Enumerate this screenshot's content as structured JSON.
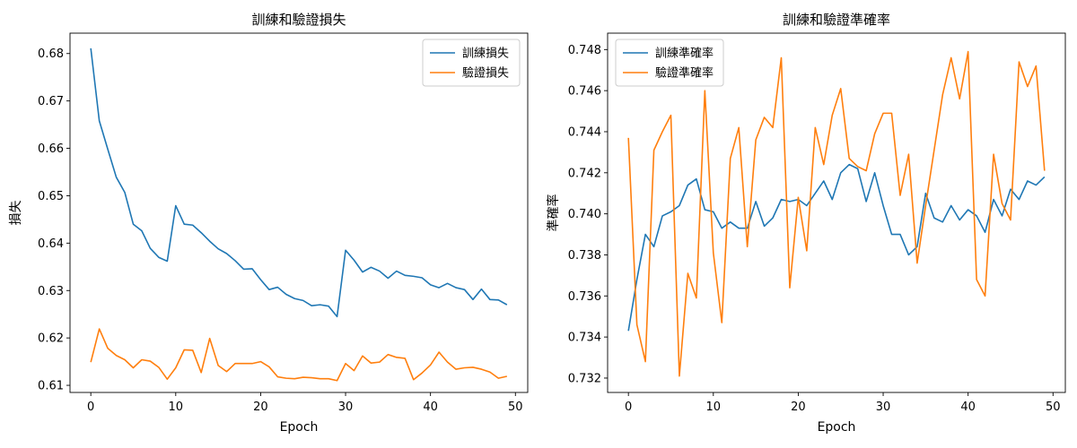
{
  "chart_data": [
    {
      "type": "line",
      "title": "訓練和驗證損失",
      "xlabel": "Epoch",
      "ylabel": "損失",
      "xlim": [
        -2.45,
        51.45
      ],
      "ylim": [
        0.6085,
        0.6843
      ],
      "xticks": [
        0,
        10,
        20,
        30,
        40,
        50
      ],
      "xtick_labels": [
        "0",
        "10",
        "20",
        "30",
        "40",
        "50"
      ],
      "yticks": [
        0.61,
        0.62,
        0.63,
        0.64,
        0.65,
        0.66,
        0.67,
        0.68
      ],
      "ytick_labels": [
        "0.61",
        "0.62",
        "0.63",
        "0.64",
        "0.65",
        "0.66",
        "0.67",
        "0.68"
      ],
      "legend_position": "upper-right",
      "grid": false,
      "x": [
        0,
        1,
        2,
        3,
        4,
        5,
        6,
        7,
        8,
        9,
        10,
        11,
        12,
        13,
        14,
        15,
        16,
        17,
        18,
        19,
        20,
        21,
        22,
        23,
        24,
        25,
        26,
        27,
        28,
        29,
        30,
        31,
        32,
        33,
        34,
        35,
        36,
        37,
        38,
        39,
        40,
        41,
        42,
        43,
        44,
        45,
        46,
        47,
        48,
        49
      ],
      "series": [
        {
          "name": "訓練損失",
          "color": "#1f77b4",
          "values": [
            0.6811,
            0.6658,
            0.6598,
            0.6539,
            0.6507,
            0.644,
            0.6426,
            0.6389,
            0.637,
            0.6362,
            0.6479,
            0.644,
            0.6438,
            0.6422,
            0.6404,
            0.6388,
            0.6378,
            0.6363,
            0.6345,
            0.6346,
            0.6323,
            0.6302,
            0.6307,
            0.6292,
            0.6283,
            0.6279,
            0.6268,
            0.627,
            0.6267,
            0.6245,
            0.6385,
            0.6364,
            0.6339,
            0.6349,
            0.6341,
            0.6326,
            0.6341,
            0.6332,
            0.633,
            0.6327,
            0.6312,
            0.6306,
            0.6315,
            0.6306,
            0.6302,
            0.6281,
            0.6303,
            0.6281,
            0.628,
            0.627
          ]
        },
        {
          "name": "驗證損失",
          "color": "#ff7f0e",
          "values": [
            0.6149,
            0.6219,
            0.6178,
            0.6163,
            0.6154,
            0.6137,
            0.6154,
            0.6151,
            0.6138,
            0.6113,
            0.6137,
            0.6175,
            0.6174,
            0.6127,
            0.6199,
            0.6142,
            0.6129,
            0.6146,
            0.6146,
            0.6146,
            0.615,
            0.6139,
            0.6118,
            0.6115,
            0.6114,
            0.6117,
            0.6116,
            0.6114,
            0.6114,
            0.611,
            0.6146,
            0.6131,
            0.6162,
            0.6147,
            0.6149,
            0.6165,
            0.6159,
            0.6157,
            0.6112,
            0.6126,
            0.6143,
            0.617,
            0.6149,
            0.6134,
            0.6137,
            0.6138,
            0.6134,
            0.6128,
            0.6115,
            0.6119
          ]
        }
      ]
    },
    {
      "type": "line",
      "title": "訓練和驗證準確率",
      "xlabel": "Epoch",
      "ylabel": "準確率",
      "xlim": [
        -2.45,
        51.45
      ],
      "ylim": [
        0.7313,
        0.7488
      ],
      "xticks": [
        0,
        10,
        20,
        30,
        40,
        50
      ],
      "xtick_labels": [
        "0",
        "10",
        "20",
        "30",
        "40",
        "50"
      ],
      "yticks": [
        0.732,
        0.734,
        0.736,
        0.738,
        0.74,
        0.742,
        0.744,
        0.746,
        0.748
      ],
      "ytick_labels": [
        "0.732",
        "0.734",
        "0.736",
        "0.738",
        "0.740",
        "0.742",
        "0.744",
        "0.746",
        "0.748"
      ],
      "legend_position": "upper-left",
      "grid": false,
      "x": [
        0,
        1,
        2,
        3,
        4,
        5,
        6,
        7,
        8,
        9,
        10,
        11,
        12,
        13,
        14,
        15,
        16,
        17,
        18,
        19,
        20,
        21,
        22,
        23,
        24,
        25,
        26,
        27,
        28,
        29,
        30,
        31,
        32,
        33,
        34,
        35,
        36,
        37,
        38,
        39,
        40,
        41,
        42,
        43,
        44,
        45,
        46,
        47,
        48,
        49
      ],
      "series": [
        {
          "name": "訓練準確率",
          "color": "#1f77b4",
          "values": [
            0.7343,
            0.7368,
            0.739,
            0.7384,
            0.7399,
            0.7401,
            0.7404,
            0.7414,
            0.7417,
            0.7402,
            0.7401,
            0.7393,
            0.7396,
            0.7393,
            0.7393,
            0.7406,
            0.7394,
            0.7398,
            0.7407,
            0.7406,
            0.7407,
            0.7404,
            0.741,
            0.7416,
            0.7407,
            0.742,
            0.7424,
            0.7422,
            0.7406,
            0.742,
            0.7404,
            0.739,
            0.739,
            0.738,
            0.7384,
            0.741,
            0.7398,
            0.7396,
            0.7404,
            0.7397,
            0.7402,
            0.7399,
            0.7391,
            0.7407,
            0.7399,
            0.7412,
            0.7407,
            0.7416,
            0.7414,
            0.7418
          ]
        },
        {
          "name": "驗證準確率",
          "color": "#ff7f0e",
          "values": [
            0.7437,
            0.7346,
            0.7328,
            0.7431,
            0.744,
            0.7448,
            0.7321,
            0.7371,
            0.7359,
            0.746,
            0.7381,
            0.7347,
            0.7427,
            0.7442,
            0.7384,
            0.7436,
            0.7447,
            0.7442,
            0.7476,
            0.7364,
            0.7408,
            0.7382,
            0.7442,
            0.7424,
            0.7448,
            0.7461,
            0.7427,
            0.7423,
            0.7421,
            0.7439,
            0.7449,
            0.7449,
            0.7409,
            0.7429,
            0.7376,
            0.7404,
            0.7431,
            0.7458,
            0.7476,
            0.7456,
            0.7479,
            0.7368,
            0.736,
            0.7429,
            0.7405,
            0.7397,
            0.7474,
            0.7462,
            0.7472,
            0.7421
          ]
        }
      ]
    }
  ]
}
